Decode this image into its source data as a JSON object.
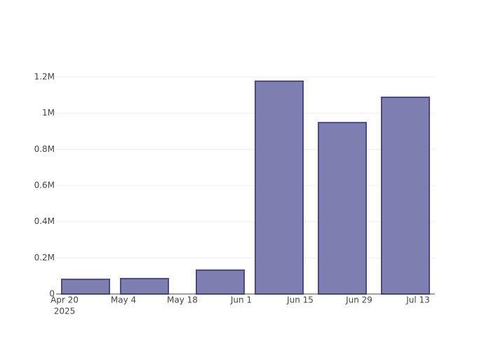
{
  "chart_data": {
    "type": "bar",
    "x": [
      "2025-04-25",
      "2025-05-09",
      "2025-05-27",
      "2025-06-10",
      "2025-06-25",
      "2025-07-10"
    ],
    "values": [
      81000,
      85000,
      132000,
      1177000,
      948000,
      1088000
    ],
    "color": "#7f7eb0",
    "line_color": "#4a4a85",
    "xlim": [
      "2025-04-18",
      "2025-07-17"
    ],
    "xticks": [
      {
        "value": "2025-04-20",
        "label": [
          "Apr 20",
          "2025"
        ]
      },
      {
        "value": "2025-05-04",
        "label": [
          "May 4"
        ]
      },
      {
        "value": "2025-05-18",
        "label": [
          "May 18"
        ]
      },
      {
        "value": "2025-06-01",
        "label": [
          "Jun 1"
        ]
      },
      {
        "value": "2025-06-15",
        "label": [
          "Jun 15"
        ]
      },
      {
        "value": "2025-06-29",
        "label": [
          "Jun 29"
        ]
      },
      {
        "value": "2025-07-13",
        "label": [
          "Jul 13"
        ]
      }
    ],
    "ylim": [
      0,
      1239000
    ],
    "yticks": [
      0,
      {
        "value": 200000,
        "label": "0.2M"
      },
      {
        "value": 400000,
        "label": "0.4M"
      },
      {
        "value": 600000,
        "label": "0.6M"
      },
      {
        "value": 800000,
        "label": "0.8M"
      },
      {
        "value": 1000000,
        "label": "1M"
      },
      {
        "value": 1200000,
        "label": "1.2M"
      }
    ],
    "grid": true
  }
}
